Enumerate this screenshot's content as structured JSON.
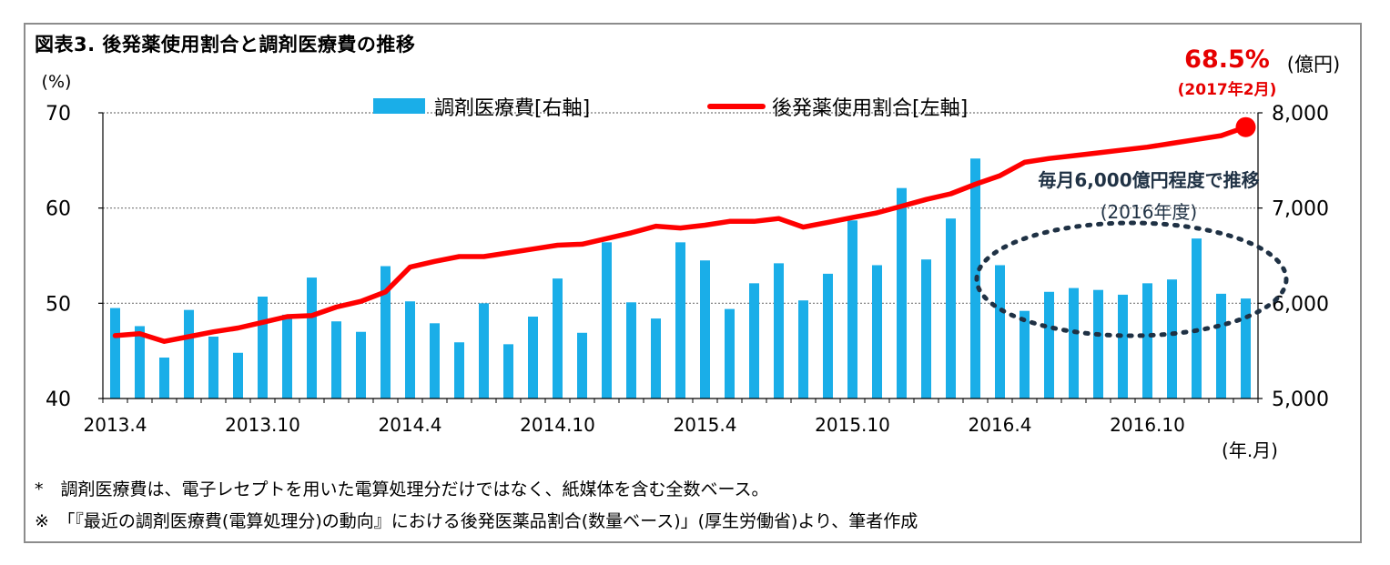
{
  "title": "図表3. 後発薬使用割合と調剤医療費の推移",
  "notes": [
    "*　調剤医療費は、電子レセプトを用いた電算処理分だけではなく、紙媒体を含む全数ベース。",
    "※　「『最近の調剤医療費(電算処理分)の動向』における後発医薬品割合(数量ベース)」(厚生労働省)より、筆者作成"
  ],
  "colors": {
    "bars": "#1aaee8",
    "line": "#ff0000",
    "annotation_line": "#e60000",
    "ellipse": "#1f3144",
    "grid": "#777777"
  },
  "chart_data": {
    "type": "bar+line",
    "left_axis": {
      "unit_label": "(%)",
      "ylim": [
        40,
        70
      ],
      "ticks": [
        "40",
        "50",
        "60",
        "70"
      ]
    },
    "right_axis": {
      "unit_label": "(億円)",
      "ylim": [
        5000,
        8000
      ],
      "ticks": [
        "5,000",
        "6,000",
        "7,000",
        "8,000"
      ]
    },
    "x_axis": {
      "unit_label": "(年.月)",
      "tick_labels": [
        "2013.4",
        "2013.10",
        "2014.4",
        "2014.10",
        "2015.4",
        "2015.10",
        "2016.4",
        "2016.10"
      ],
      "tick_every": 6
    },
    "grid": true,
    "legend": {
      "placement": "top",
      "entries": [
        "調剤医療費[右軸]",
        "後発薬使用割合[左軸]"
      ]
    },
    "categories": [
      "2013.4",
      "2013.5",
      "2013.6",
      "2013.7",
      "2013.8",
      "2013.9",
      "2013.10",
      "2013.11",
      "2013.12",
      "2014.1",
      "2014.2",
      "2014.3",
      "2014.4",
      "2014.5",
      "2014.6",
      "2014.7",
      "2014.8",
      "2014.9",
      "2014.10",
      "2014.11",
      "2014.12",
      "2015.1",
      "2015.2",
      "2015.3",
      "2015.4",
      "2015.5",
      "2015.6",
      "2015.7",
      "2015.8",
      "2015.9",
      "2015.10",
      "2015.11",
      "2015.12",
      "2016.1",
      "2016.2",
      "2016.3",
      "2016.4",
      "2016.5",
      "2016.6",
      "2016.7",
      "2016.8",
      "2016.9",
      "2016.10",
      "2016.11",
      "2016.12",
      "2017.1",
      "2017.2"
    ],
    "series": [
      {
        "name": "調剤医療費[右軸]",
        "type": "bar",
        "axis": "right",
        "values": [
          5950,
          5760,
          5430,
          5930,
          5650,
          5480,
          6070,
          5880,
          6270,
          5810,
          5700,
          6390,
          6020,
          5790,
          5590,
          6000,
          5570,
          5860,
          6260,
          5690,
          6640,
          6010,
          5840,
          6640,
          6450,
          5940,
          6210,
          6420,
          6030,
          6310,
          6870,
          6400,
          7210,
          6460,
          6890,
          7520,
          6400,
          5920,
          6120,
          6160,
          6140,
          6090,
          6210,
          6250,
          6680,
          6100,
          6050
        ]
      },
      {
        "name": "後発薬使用割合[左軸]",
        "type": "line",
        "axis": "left",
        "values": [
          46.6,
          46.8,
          46.0,
          46.5,
          47.0,
          47.4,
          48.0,
          48.6,
          48.7,
          49.6,
          50.2,
          51.2,
          53.8,
          54.4,
          54.9,
          54.9,
          55.3,
          55.7,
          56.1,
          56.2,
          56.8,
          57.4,
          58.1,
          57.9,
          58.2,
          58.6,
          58.6,
          58.9,
          58.0,
          58.5,
          59.0,
          59.5,
          60.2,
          60.9,
          61.5,
          62.5,
          63.4,
          64.8,
          65.2,
          65.5,
          65.8,
          66.1,
          66.4,
          66.8,
          67.2,
          67.6,
          68.5
        ]
      }
    ],
    "annotations": {
      "last_value": "68.5%",
      "last_date": "(2017年2月)",
      "ellipse_note_line1": "毎月6,000億円程度で推移",
      "ellipse_note_line2": "(2016年度)"
    }
  }
}
